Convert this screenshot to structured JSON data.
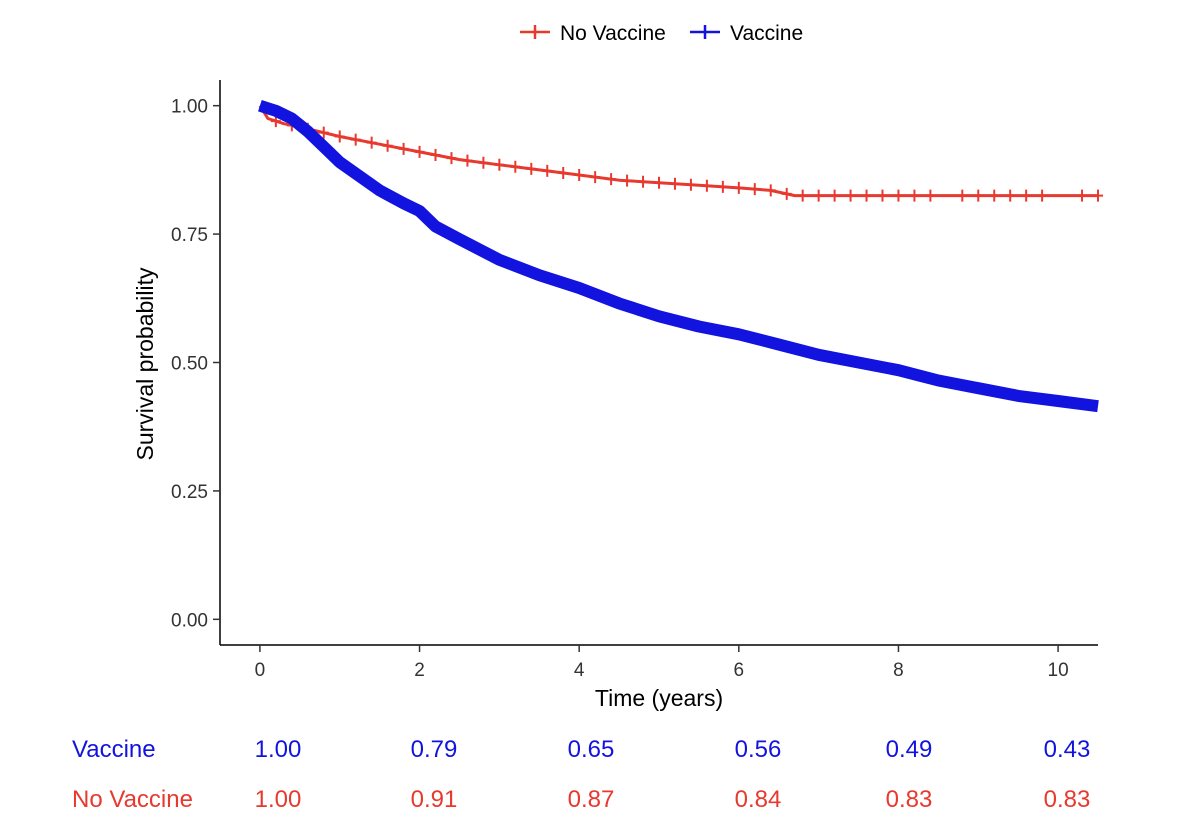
{
  "chart_data": {
    "type": "line",
    "subtype": "kaplan-meier",
    "title": "",
    "xlabel": "Time (years)",
    "ylabel": "Survival probability",
    "xlim": [
      -0.5,
      10.5
    ],
    "ylim": [
      -0.05,
      1.05
    ],
    "x_ticks": [
      0,
      2,
      4,
      6,
      8,
      10
    ],
    "x_tick_labels": [
      "0",
      "2",
      "4",
      "6",
      "8",
      "10"
    ],
    "y_ticks": [
      0,
      0.25,
      0.5,
      0.75,
      1.0
    ],
    "y_tick_labels": [
      "0.00",
      "0.25",
      "0.50",
      "0.75",
      "1.00"
    ],
    "grid": false,
    "legend": {
      "position": "top",
      "entries": [
        "No Vaccine",
        "Vaccine"
      ]
    },
    "series": [
      {
        "name": "No Vaccine",
        "color": "#e8392f",
        "x": [
          0,
          0.1,
          0.3,
          0.6,
          1.0,
          1.5,
          2.0,
          2.5,
          3.0,
          3.5,
          4.0,
          4.5,
          5.0,
          5.5,
          6.0,
          6.4,
          6.7,
          7.0,
          8.0,
          9.0,
          10.0,
          10.5
        ],
        "y": [
          1.0,
          0.975,
          0.965,
          0.955,
          0.94,
          0.925,
          0.91,
          0.895,
          0.885,
          0.875,
          0.865,
          0.855,
          0.85,
          0.845,
          0.84,
          0.835,
          0.825,
          0.825,
          0.825,
          0.825,
          0.825,
          0.825
        ],
        "censor_x": [
          0.2,
          0.4,
          0.6,
          0.8,
          1.0,
          1.2,
          1.4,
          1.6,
          1.8,
          2.0,
          2.2,
          2.4,
          2.6,
          2.8,
          3.0,
          3.2,
          3.4,
          3.6,
          3.8,
          4.0,
          4.2,
          4.4,
          4.6,
          4.8,
          5.0,
          5.2,
          5.4,
          5.6,
          5.8,
          6.0,
          6.2,
          6.4,
          6.6,
          6.8,
          7.0,
          7.2,
          7.4,
          7.6,
          7.8,
          8.0,
          8.2,
          8.4,
          8.8,
          9.0,
          9.2,
          9.4,
          9.6,
          9.8,
          10.3,
          10.5
        ]
      },
      {
        "name": "Vaccine",
        "color": "#1313e0",
        "x": [
          0,
          0.1,
          0.2,
          0.4,
          0.6,
          0.8,
          1.0,
          1.5,
          1.8,
          2.0,
          2.2,
          2.5,
          3.0,
          3.5,
          4.0,
          4.5,
          5.0,
          5.5,
          6.0,
          6.5,
          7.0,
          7.5,
          8.0,
          8.5,
          9.0,
          9.5,
          10.0,
          10.5
        ],
        "y": [
          1.0,
          0.995,
          0.99,
          0.975,
          0.95,
          0.92,
          0.89,
          0.835,
          0.81,
          0.795,
          0.765,
          0.74,
          0.7,
          0.67,
          0.645,
          0.615,
          0.59,
          0.57,
          0.555,
          0.535,
          0.515,
          0.5,
          0.485,
          0.465,
          0.45,
          0.435,
          0.425,
          0.415
        ]
      }
    ],
    "risk_table": {
      "rows": [
        {
          "label": "Vaccine",
          "color": "#1313e0",
          "values": [
            "1.00",
            "0.79",
            "0.65",
            "0.56",
            "0.49",
            "0.43"
          ]
        },
        {
          "label": "No Vaccine",
          "color": "#e8392f",
          "values": [
            "1.00",
            "0.91",
            "0.87",
            "0.84",
            "0.83",
            "0.83"
          ]
        }
      ]
    }
  }
}
